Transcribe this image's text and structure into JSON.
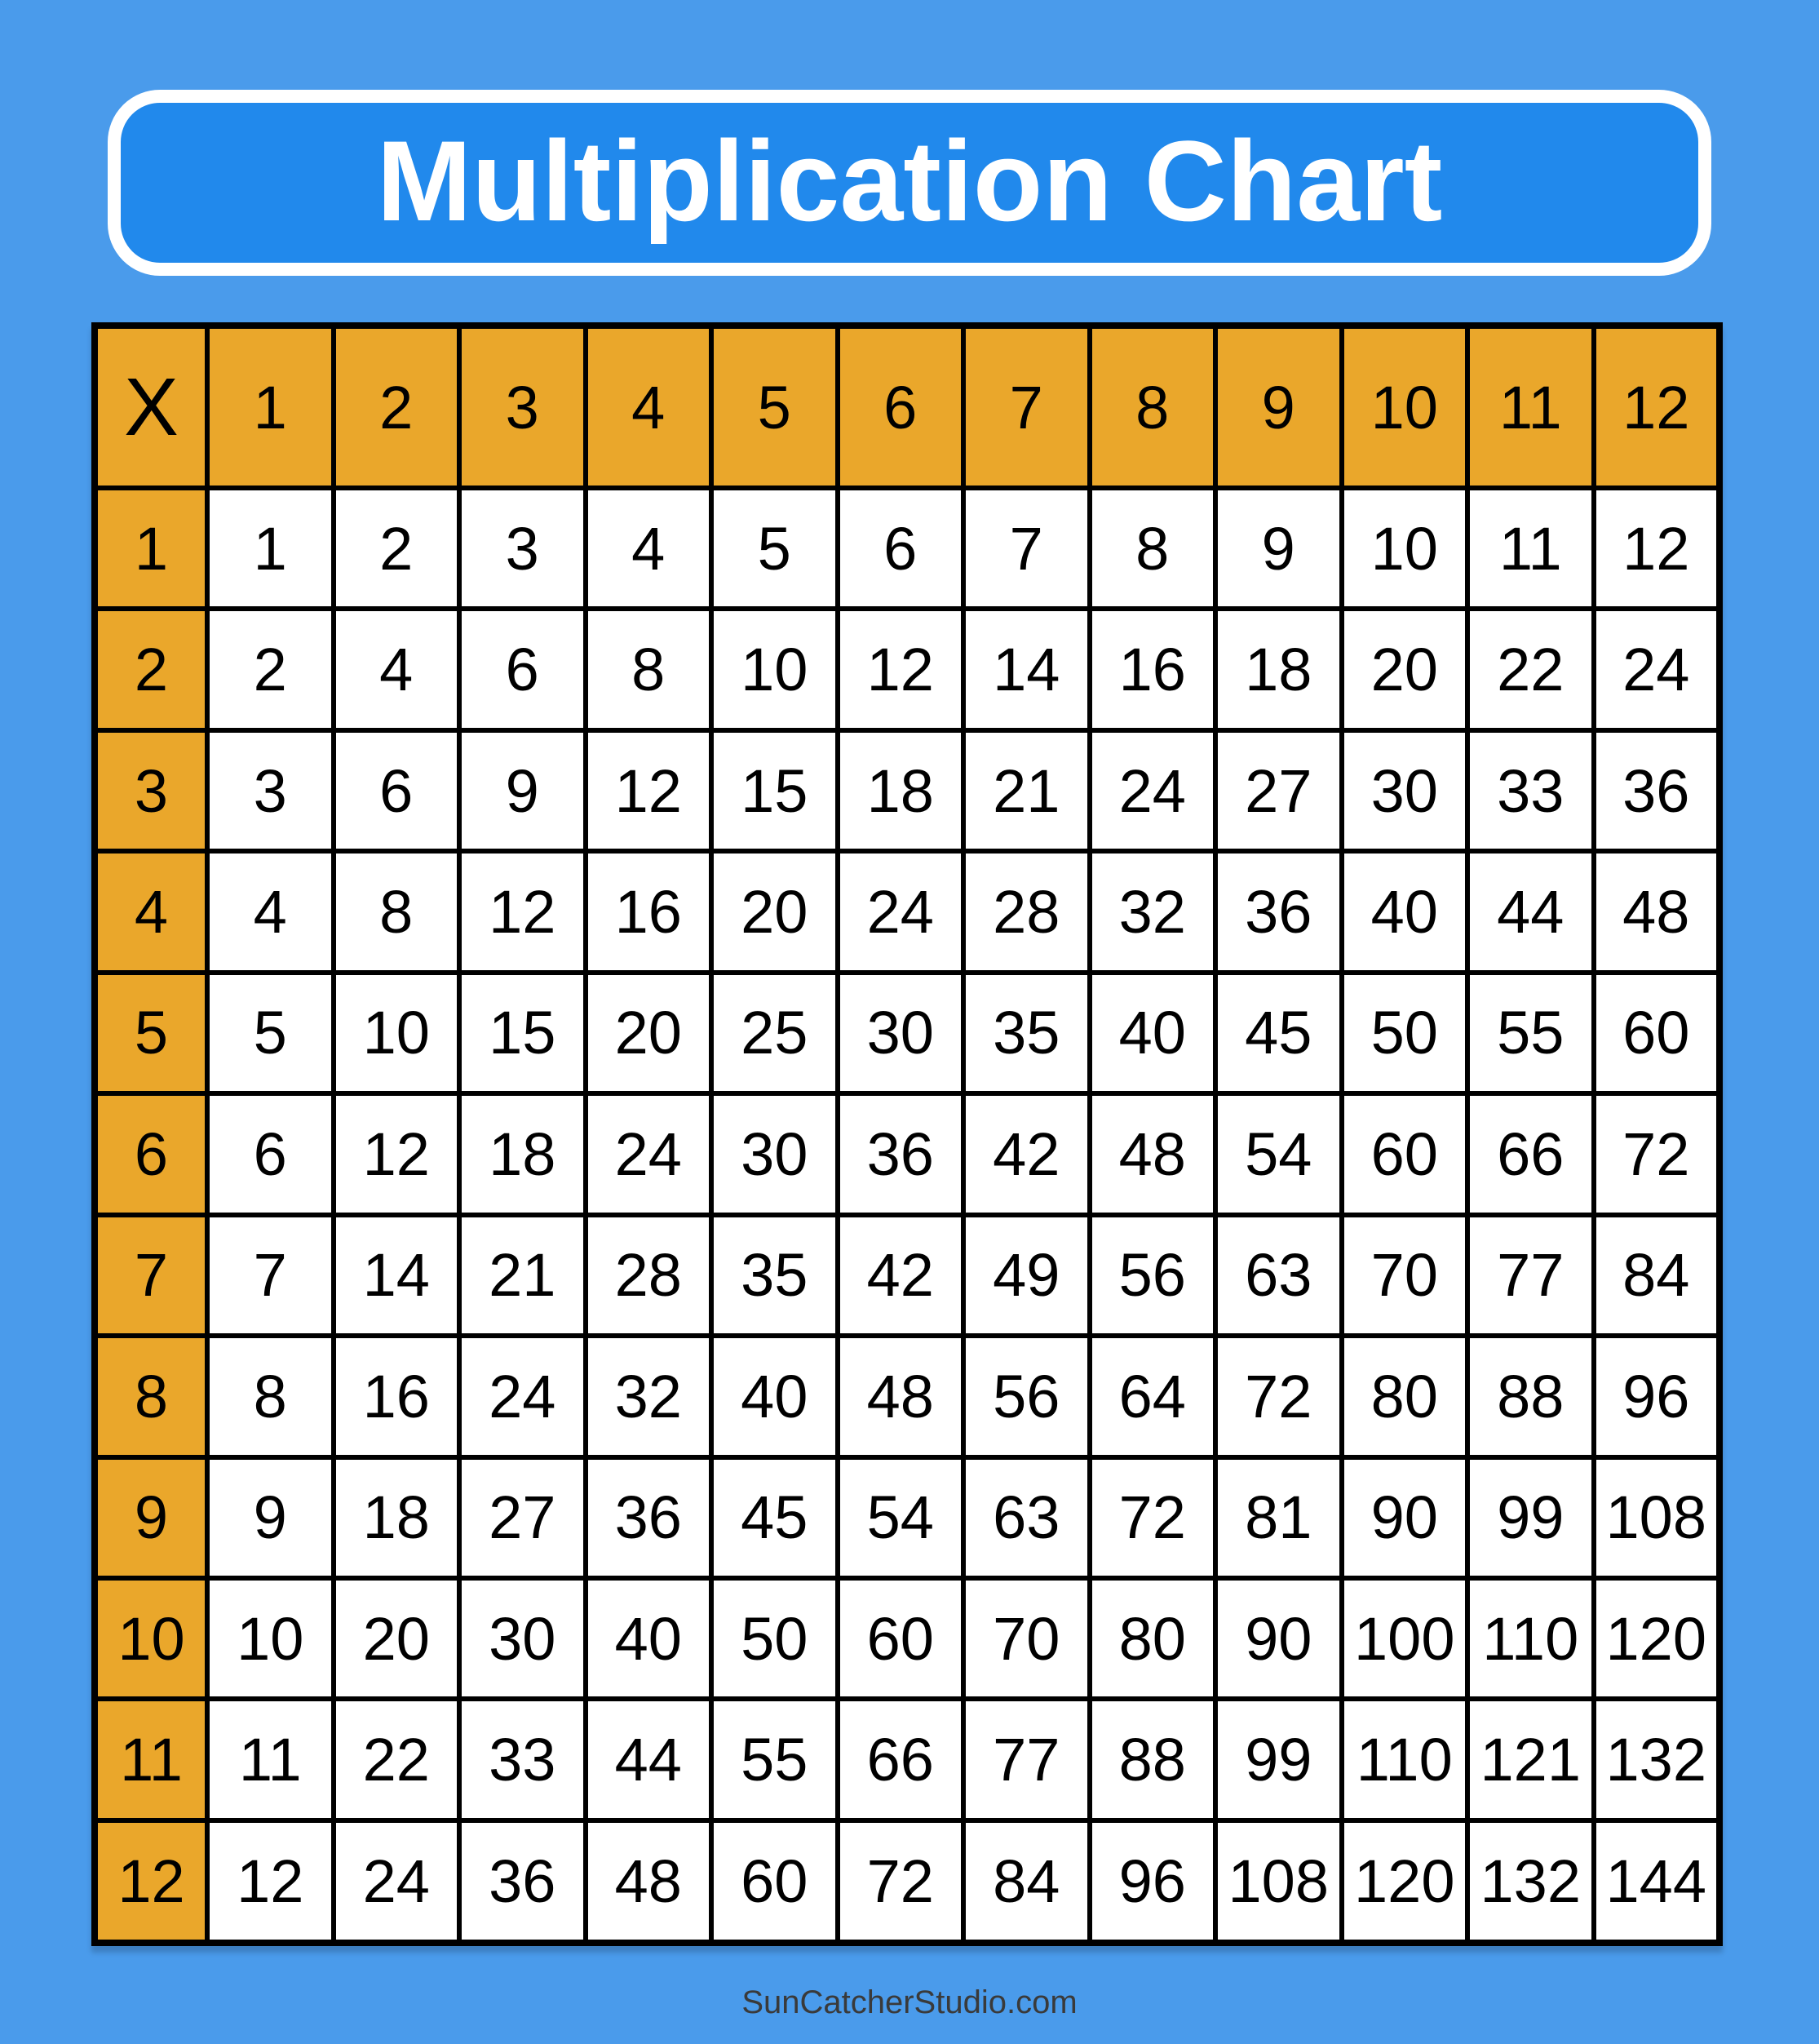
{
  "page": {
    "background_color": "#4A9BEB"
  },
  "title_banner": {
    "text": "Multiplication Chart",
    "fill_color": "#2189EC",
    "border_color": "#FFFFFF",
    "text_color": "#FFFFFF"
  },
  "table_style": {
    "header_fill_color": "#EAA72B",
    "cell_fill_color": "#FFFFFF",
    "grid_color": "#000000",
    "text_color": "#000000"
  },
  "footer": {
    "text": "SunCatcherStudio.com",
    "color": "#3A3A3A"
  },
  "chart_data": {
    "type": "table",
    "title": "Multiplication Chart",
    "corner_label": "X",
    "column_headers": [
      1,
      2,
      3,
      4,
      5,
      6,
      7,
      8,
      9,
      10,
      11,
      12
    ],
    "row_headers": [
      1,
      2,
      3,
      4,
      5,
      6,
      7,
      8,
      9,
      10,
      11,
      12
    ],
    "values": [
      [
        1,
        2,
        3,
        4,
        5,
        6,
        7,
        8,
        9,
        10,
        11,
        12
      ],
      [
        2,
        4,
        6,
        8,
        10,
        12,
        14,
        16,
        18,
        20,
        22,
        24
      ],
      [
        3,
        6,
        9,
        12,
        15,
        18,
        21,
        24,
        27,
        30,
        33,
        36
      ],
      [
        4,
        8,
        12,
        16,
        20,
        24,
        28,
        32,
        36,
        40,
        44,
        48
      ],
      [
        5,
        10,
        15,
        20,
        25,
        30,
        35,
        40,
        45,
        50,
        55,
        60
      ],
      [
        6,
        12,
        18,
        24,
        30,
        36,
        42,
        48,
        54,
        60,
        66,
        72
      ],
      [
        7,
        14,
        21,
        28,
        35,
        42,
        49,
        56,
        63,
        70,
        77,
        84
      ],
      [
        8,
        16,
        24,
        32,
        40,
        48,
        56,
        64,
        72,
        80,
        88,
        96
      ],
      [
        9,
        18,
        27,
        36,
        45,
        54,
        63,
        72,
        81,
        90,
        99,
        108
      ],
      [
        10,
        20,
        30,
        40,
        50,
        60,
        70,
        80,
        90,
        100,
        110,
        120
      ],
      [
        11,
        22,
        33,
        44,
        55,
        66,
        77,
        88,
        99,
        110,
        121,
        132
      ],
      [
        12,
        24,
        36,
        48,
        60,
        72,
        84,
        96,
        108,
        120,
        132,
        144
      ]
    ]
  }
}
